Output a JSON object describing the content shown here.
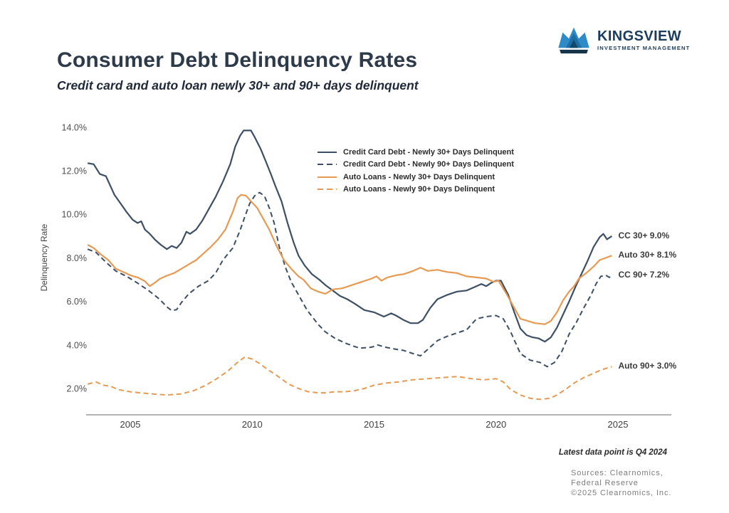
{
  "page": {
    "title": "Consumer Debt Delinquency Rates",
    "subtitle": "Credit card and auto loan newly 30+ and 90+ days delinquent",
    "footnote": "Latest data point is Q4 2024",
    "sources": [
      "Sources: Clearnomics,",
      "Federal Reserve",
      "©2025 Clearnomics, Inc."
    ]
  },
  "logo": {
    "name": "KINGSVIEW",
    "tagline": "INVESTMENT MANAGEMENT",
    "colors": {
      "navy": "#1b3c5e",
      "light_blue": "#2e8bc8",
      "mid_blue": "#1e6ea5",
      "dark_blue": "#14486b",
      "base_bar": "#15344a"
    }
  },
  "chart_data": {
    "type": "line",
    "title": "Consumer Debt Delinquency Rates",
    "subtitle": "Credit card and auto loan newly 30+ and 90+ days delinquent",
    "xlabel": "",
    "ylabel": "Delinquency Rate",
    "xlim": [
      2003.2,
      2027.4
    ],
    "ylim": [
      0.8,
      14.6
    ],
    "grid": false,
    "legend_position": "upper-center",
    "x_ticks": {
      "values": [
        2005,
        2010,
        2015,
        2020,
        2025
      ],
      "labels": [
        "2005",
        "2010",
        "2015",
        "2020",
        "2025"
      ]
    },
    "y_ticks": {
      "values": [
        2,
        4,
        6,
        8,
        10,
        12,
        14
      ],
      "labels": [
        "2.0%",
        "4.0%",
        "6.0%",
        "8.0%",
        "10.0%",
        "12.0%",
        "14.0%"
      ]
    },
    "axis_color": "#b3b3b3",
    "series": [
      {
        "name": "Credit Card Debt - Newly 30+ Days Delinquent",
        "style": "solid",
        "color": "#3d4f64",
        "end_label": "CC 30+ 9.0%",
        "points": [
          [
            2003.25,
            12.35
          ],
          [
            2003.5,
            12.3
          ],
          [
            2003.75,
            11.85
          ],
          [
            2004.0,
            11.75
          ],
          [
            2004.35,
            10.9
          ],
          [
            2004.6,
            10.5
          ],
          [
            2004.85,
            10.1
          ],
          [
            2005.1,
            9.75
          ],
          [
            2005.3,
            9.6
          ],
          [
            2005.45,
            9.68
          ],
          [
            2005.6,
            9.3
          ],
          [
            2005.8,
            9.1
          ],
          [
            2006.0,
            8.85
          ],
          [
            2006.25,
            8.6
          ],
          [
            2006.5,
            8.4
          ],
          [
            2006.7,
            8.55
          ],
          [
            2006.9,
            8.45
          ],
          [
            2007.1,
            8.7
          ],
          [
            2007.3,
            9.2
          ],
          [
            2007.45,
            9.1
          ],
          [
            2007.7,
            9.3
          ],
          [
            2007.95,
            9.7
          ],
          [
            2008.2,
            10.2
          ],
          [
            2008.5,
            10.8
          ],
          [
            2008.8,
            11.5
          ],
          [
            2009.1,
            12.3
          ],
          [
            2009.3,
            13.1
          ],
          [
            2009.5,
            13.6
          ],
          [
            2009.65,
            13.85
          ],
          [
            2009.95,
            13.85
          ],
          [
            2010.1,
            13.55
          ],
          [
            2010.35,
            13.0
          ],
          [
            2010.55,
            12.45
          ],
          [
            2010.75,
            11.9
          ],
          [
            2010.95,
            11.3
          ],
          [
            2011.2,
            10.6
          ],
          [
            2011.45,
            9.6
          ],
          [
            2011.7,
            8.7
          ],
          [
            2011.9,
            8.1
          ],
          [
            2012.15,
            7.65
          ],
          [
            2012.45,
            7.25
          ],
          [
            2012.75,
            7.0
          ],
          [
            2013.0,
            6.75
          ],
          [
            2013.3,
            6.5
          ],
          [
            2013.6,
            6.25
          ],
          [
            2013.9,
            6.1
          ],
          [
            2014.2,
            5.9
          ],
          [
            2014.6,
            5.6
          ],
          [
            2015.0,
            5.5
          ],
          [
            2015.4,
            5.3
          ],
          [
            2015.7,
            5.45
          ],
          [
            2015.9,
            5.35
          ],
          [
            2016.2,
            5.15
          ],
          [
            2016.5,
            5.0
          ],
          [
            2016.8,
            5.0
          ],
          [
            2017.0,
            5.15
          ],
          [
            2017.3,
            5.7
          ],
          [
            2017.6,
            6.1
          ],
          [
            2018.0,
            6.3
          ],
          [
            2018.4,
            6.45
          ],
          [
            2018.8,
            6.5
          ],
          [
            2019.1,
            6.65
          ],
          [
            2019.4,
            6.8
          ],
          [
            2019.6,
            6.7
          ],
          [
            2019.8,
            6.85
          ],
          [
            2020.0,
            6.95
          ],
          [
            2020.2,
            6.95
          ],
          [
            2020.5,
            6.3
          ],
          [
            2020.75,
            5.5
          ],
          [
            2021.0,
            4.75
          ],
          [
            2021.25,
            4.45
          ],
          [
            2021.5,
            4.35
          ],
          [
            2021.75,
            4.3
          ],
          [
            2022.0,
            4.15
          ],
          [
            2022.25,
            4.35
          ],
          [
            2022.5,
            4.8
          ],
          [
            2022.75,
            5.4
          ],
          [
            2023.0,
            6.0
          ],
          [
            2023.25,
            6.65
          ],
          [
            2023.5,
            7.25
          ],
          [
            2023.75,
            7.85
          ],
          [
            2024.0,
            8.5
          ],
          [
            2024.25,
            8.95
          ],
          [
            2024.4,
            9.1
          ],
          [
            2024.55,
            8.85
          ],
          [
            2024.75,
            9.0
          ]
        ]
      },
      {
        "name": "Credit Card Debt - Newly 90+ Days Delinquent",
        "style": "dashed",
        "color": "#3d4f64",
        "end_label": "CC 90+ 7.2%",
        "points": [
          [
            2003.25,
            8.4
          ],
          [
            2003.6,
            8.25
          ],
          [
            2004.0,
            7.8
          ],
          [
            2004.4,
            7.4
          ],
          [
            2004.85,
            7.15
          ],
          [
            2005.3,
            6.84
          ],
          [
            2005.75,
            6.5
          ],
          [
            2006.2,
            6.1
          ],
          [
            2006.5,
            5.75
          ],
          [
            2006.7,
            5.58
          ],
          [
            2006.9,
            5.62
          ],
          [
            2007.1,
            5.95
          ],
          [
            2007.4,
            6.35
          ],
          [
            2007.8,
            6.7
          ],
          [
            2008.2,
            6.95
          ],
          [
            2008.5,
            7.3
          ],
          [
            2008.8,
            7.9
          ],
          [
            2009.2,
            8.45
          ],
          [
            2009.5,
            9.25
          ],
          [
            2009.7,
            9.9
          ],
          [
            2009.9,
            10.5
          ],
          [
            2010.1,
            10.85
          ],
          [
            2010.3,
            11.0
          ],
          [
            2010.5,
            10.85
          ],
          [
            2010.7,
            10.3
          ],
          [
            2010.9,
            9.6
          ],
          [
            2011.1,
            8.55
          ],
          [
            2011.35,
            7.6
          ],
          [
            2011.6,
            6.9
          ],
          [
            2011.9,
            6.3
          ],
          [
            2012.25,
            5.6
          ],
          [
            2012.7,
            4.95
          ],
          [
            2013.0,
            4.6
          ],
          [
            2013.4,
            4.3
          ],
          [
            2013.9,
            4.05
          ],
          [
            2014.4,
            3.85
          ],
          [
            2014.9,
            3.9
          ],
          [
            2015.15,
            4.0
          ],
          [
            2015.45,
            3.9
          ],
          [
            2015.9,
            3.8
          ],
          [
            2016.2,
            3.75
          ],
          [
            2016.6,
            3.6
          ],
          [
            2016.9,
            3.5
          ],
          [
            2017.3,
            3.9
          ],
          [
            2017.6,
            4.2
          ],
          [
            2018.0,
            4.4
          ],
          [
            2018.4,
            4.55
          ],
          [
            2018.8,
            4.7
          ],
          [
            2019.2,
            5.2
          ],
          [
            2019.6,
            5.3
          ],
          [
            2020.0,
            5.35
          ],
          [
            2020.3,
            5.2
          ],
          [
            2020.6,
            4.6
          ],
          [
            2021.0,
            3.6
          ],
          [
            2021.4,
            3.3
          ],
          [
            2021.8,
            3.2
          ],
          [
            2022.1,
            3.0
          ],
          [
            2022.4,
            3.2
          ],
          [
            2022.7,
            3.7
          ],
          [
            2023.0,
            4.5
          ],
          [
            2023.3,
            5.05
          ],
          [
            2023.6,
            5.7
          ],
          [
            2023.9,
            6.3
          ],
          [
            2024.1,
            6.8
          ],
          [
            2024.3,
            7.15
          ],
          [
            2024.5,
            7.2
          ],
          [
            2024.65,
            7.1
          ],
          [
            2024.75,
            7.2
          ]
        ]
      },
      {
        "name": "Auto Loans - Newly 30+ Days Delinquent",
        "style": "solid",
        "color": "#e69a52",
        "end_label": "Auto 30+ 8.1%",
        "points": [
          [
            2003.25,
            8.6
          ],
          [
            2003.5,
            8.45
          ],
          [
            2003.8,
            8.15
          ],
          [
            2004.1,
            7.9
          ],
          [
            2004.4,
            7.5
          ],
          [
            2004.7,
            7.36
          ],
          [
            2005.0,
            7.2
          ],
          [
            2005.3,
            7.1
          ],
          [
            2005.6,
            6.93
          ],
          [
            2005.8,
            6.7
          ],
          [
            2006.0,
            6.85
          ],
          [
            2006.2,
            7.03
          ],
          [
            2006.45,
            7.16
          ],
          [
            2006.8,
            7.3
          ],
          [
            2007.1,
            7.5
          ],
          [
            2007.4,
            7.7
          ],
          [
            2007.7,
            7.9
          ],
          [
            2008.0,
            8.2
          ],
          [
            2008.3,
            8.5
          ],
          [
            2008.6,
            8.85
          ],
          [
            2008.9,
            9.3
          ],
          [
            2009.2,
            10.1
          ],
          [
            2009.4,
            10.75
          ],
          [
            2009.55,
            10.9
          ],
          [
            2009.75,
            10.85
          ],
          [
            2009.95,
            10.6
          ],
          [
            2010.2,
            10.3
          ],
          [
            2010.45,
            9.8
          ],
          [
            2010.7,
            9.3
          ],
          [
            2011.0,
            8.55
          ],
          [
            2011.3,
            7.9
          ],
          [
            2011.6,
            7.5
          ],
          [
            2011.9,
            7.15
          ],
          [
            2012.1,
            7.0
          ],
          [
            2012.4,
            6.6
          ],
          [
            2012.7,
            6.45
          ],
          [
            2013.0,
            6.35
          ],
          [
            2013.3,
            6.55
          ],
          [
            2013.7,
            6.6
          ],
          [
            2014.1,
            6.75
          ],
          [
            2014.5,
            6.9
          ],
          [
            2014.9,
            7.05
          ],
          [
            2015.1,
            7.15
          ],
          [
            2015.3,
            6.95
          ],
          [
            2015.55,
            7.1
          ],
          [
            2015.9,
            7.2
          ],
          [
            2016.2,
            7.25
          ],
          [
            2016.6,
            7.4
          ],
          [
            2016.9,
            7.55
          ],
          [
            2017.2,
            7.4
          ],
          [
            2017.6,
            7.45
          ],
          [
            2018.0,
            7.35
          ],
          [
            2018.4,
            7.3
          ],
          [
            2018.8,
            7.15
          ],
          [
            2019.2,
            7.1
          ],
          [
            2019.6,
            7.05
          ],
          [
            2019.9,
            6.9
          ],
          [
            2020.1,
            6.95
          ],
          [
            2020.4,
            6.4
          ],
          [
            2020.7,
            5.8
          ],
          [
            2021.0,
            5.2
          ],
          [
            2021.3,
            5.1
          ],
          [
            2021.6,
            5.0
          ],
          [
            2022.0,
            4.95
          ],
          [
            2022.25,
            5.1
          ],
          [
            2022.5,
            5.5
          ],
          [
            2022.75,
            6.05
          ],
          [
            2023.0,
            6.45
          ],
          [
            2023.2,
            6.7
          ],
          [
            2023.4,
            7.05
          ],
          [
            2023.7,
            7.3
          ],
          [
            2024.0,
            7.6
          ],
          [
            2024.25,
            7.9
          ],
          [
            2024.5,
            8.0
          ],
          [
            2024.75,
            8.1
          ]
        ]
      },
      {
        "name": "Auto Loans - Newly 90+ Days Delinquent",
        "style": "dashed",
        "color": "#e69a52",
        "end_label": "Auto 90+ 3.0%",
        "points": [
          [
            2003.25,
            2.2
          ],
          [
            2003.6,
            2.3
          ],
          [
            2003.9,
            2.15
          ],
          [
            2004.2,
            2.1
          ],
          [
            2004.5,
            1.95
          ],
          [
            2005.0,
            1.85
          ],
          [
            2005.4,
            1.8
          ],
          [
            2005.9,
            1.75
          ],
          [
            2006.5,
            1.7
          ],
          [
            2007.1,
            1.75
          ],
          [
            2007.6,
            1.9
          ],
          [
            2008.1,
            2.15
          ],
          [
            2008.55,
            2.45
          ],
          [
            2009.0,
            2.8
          ],
          [
            2009.4,
            3.2
          ],
          [
            2009.7,
            3.45
          ],
          [
            2010.0,
            3.35
          ],
          [
            2010.3,
            3.15
          ],
          [
            2010.6,
            2.9
          ],
          [
            2011.0,
            2.6
          ],
          [
            2011.5,
            2.2
          ],
          [
            2011.9,
            2.0
          ],
          [
            2012.3,
            1.85
          ],
          [
            2012.7,
            1.8
          ],
          [
            2013.0,
            1.8
          ],
          [
            2013.4,
            1.85
          ],
          [
            2013.8,
            1.85
          ],
          [
            2014.2,
            1.9
          ],
          [
            2014.6,
            2.0
          ],
          [
            2015.0,
            2.15
          ],
          [
            2015.5,
            2.25
          ],
          [
            2016.0,
            2.3
          ],
          [
            2016.6,
            2.4
          ],
          [
            2017.2,
            2.45
          ],
          [
            2017.8,
            2.5
          ],
          [
            2018.4,
            2.55
          ],
          [
            2019.0,
            2.45
          ],
          [
            2019.5,
            2.4
          ],
          [
            2020.0,
            2.45
          ],
          [
            2020.3,
            2.3
          ],
          [
            2020.6,
            1.95
          ],
          [
            2021.0,
            1.7
          ],
          [
            2021.4,
            1.55
          ],
          [
            2021.8,
            1.5
          ],
          [
            2022.2,
            1.55
          ],
          [
            2022.5,
            1.7
          ],
          [
            2022.9,
            2.0
          ],
          [
            2023.2,
            2.25
          ],
          [
            2023.6,
            2.5
          ],
          [
            2024.0,
            2.7
          ],
          [
            2024.3,
            2.85
          ],
          [
            2024.6,
            2.95
          ],
          [
            2024.75,
            3.0
          ]
        ]
      }
    ]
  }
}
